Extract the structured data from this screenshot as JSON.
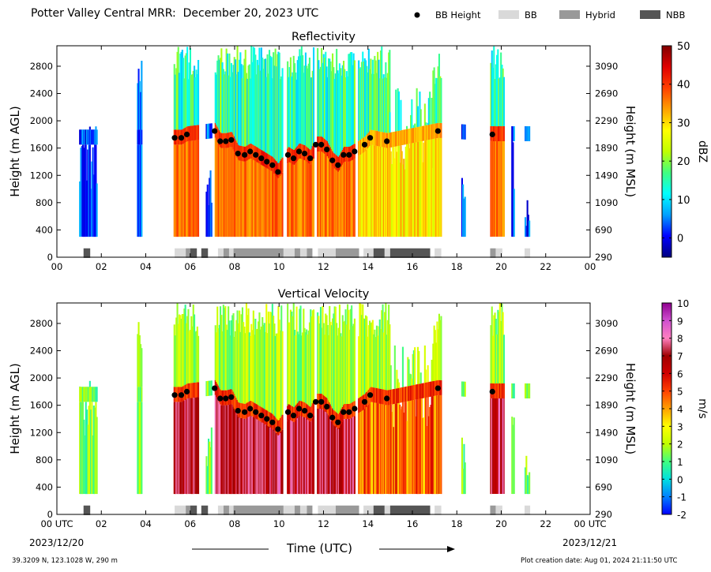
{
  "header": {
    "title": "Potter Valley Central MRR:  December 20, 2023 UTC",
    "legend": [
      {
        "label": "BB Height",
        "marker": "dot",
        "color": "#000000"
      },
      {
        "label": "BB",
        "marker": "box",
        "color": "#d9d9d9"
      },
      {
        "label": "Hybrid",
        "marker": "box",
        "color": "#999999"
      },
      {
        "label": "NBB",
        "marker": "box",
        "color": "#555555"
      }
    ]
  },
  "footer": {
    "location": "39.3209 N, 123.1028 W, 290 m",
    "creation": "Plot creation date: Aug 01, 2024 21:11:50 UTC",
    "xlabel": "Time (UTC)",
    "start_tick": "00 UTC",
    "start_date": "2023/12/20",
    "end_tick": "00 UTC",
    "end_date": "2023/12/21"
  },
  "chart_data": [
    {
      "type": "heatmap",
      "title": "Reflectivity",
      "xlabel": "",
      "ylabel": "Height (m AGL)",
      "ylabel_right": "Height (m MSL)",
      "xlim": [
        0,
        24
      ],
      "ylim": [
        0,
        3100
      ],
      "x_ticks": [
        "00",
        "02",
        "04",
        "06",
        "08",
        "10",
        "12",
        "14",
        "16",
        "18",
        "20",
        "22",
        "00"
      ],
      "y_ticks": [
        0,
        400,
        800,
        1200,
        1600,
        2000,
        2400,
        2800
      ],
      "y_ticks_right": [
        290,
        690,
        1090,
        1490,
        1890,
        2290,
        2690,
        3090
      ],
      "colorbar": {
        "label": "dBZ",
        "min": -5,
        "max": 50,
        "ticks": [
          0,
          10,
          20,
          30,
          40,
          50
        ],
        "colors": [
          "#000080",
          "#0000ff",
          "#00a0ff",
          "#00ffff",
          "#40ff80",
          "#c0ff00",
          "#ffff00",
          "#ffa000",
          "#ff4000",
          "#e00000",
          "#800000"
        ]
      },
      "grid": false
    },
    {
      "type": "heatmap",
      "title": "Vertical Velocity",
      "xlabel": "Time (UTC)",
      "ylabel": "Height (m AGL)",
      "ylabel_right": "Height (m MSL)",
      "xlim": [
        0,
        24
      ],
      "ylim": [
        0,
        3100
      ],
      "x_ticks": [
        "00 UTC",
        "02",
        "04",
        "06",
        "08",
        "10",
        "12",
        "14",
        "16",
        "18",
        "20",
        "22",
        "00 UTC"
      ],
      "y_ticks": [
        0,
        400,
        800,
        1200,
        1600,
        2000,
        2400,
        2800
      ],
      "y_ticks_right": [
        290,
        690,
        1090,
        1490,
        1890,
        2290,
        2690,
        3090
      ],
      "colorbar": {
        "label": "m/s",
        "min": -2,
        "max": 10,
        "ticks": [
          -2,
          -1,
          0,
          1,
          2,
          3,
          4,
          5,
          6,
          7,
          8,
          9,
          10
        ],
        "colors": [
          "#0000ff",
          "#0080ff",
          "#00e0e0",
          "#40ff80",
          "#c0ff00",
          "#ffff00",
          "#ffa000",
          "#ff4000",
          "#d00000",
          "#a00000",
          "#ff80c0",
          "#d050d0",
          "#900090"
        ]
      },
      "grid": false
    }
  ],
  "bb_height": {
    "time": [
      5.3,
      5.6,
      5.85,
      7.1,
      7.35,
      7.6,
      7.85,
      8.15,
      8.45,
      8.7,
      8.95,
      9.2,
      9.45,
      9.7,
      9.95,
      10.4,
      10.65,
      10.9,
      11.15,
      11.4,
      11.65,
      11.9,
      12.15,
      12.4,
      12.65,
      12.9,
      13.15,
      13.4,
      13.85,
      14.1,
      14.85,
      17.15,
      19.6
    ],
    "height": [
      1750,
      1750,
      1800,
      1850,
      1700,
      1700,
      1720,
      1520,
      1500,
      1550,
      1500,
      1450,
      1400,
      1350,
      1250,
      1500,
      1450,
      1550,
      1520,
      1450,
      1650,
      1650,
      1580,
      1420,
      1350,
      1500,
      1500,
      1550,
      1650,
      1750,
      1700,
      1850,
      1800
    ]
  },
  "classification": [
    {
      "start": 1.2,
      "end": 1.5,
      "class": "NBB"
    },
    {
      "start": 5.3,
      "end": 5.8,
      "class": "BB"
    },
    {
      "start": 5.8,
      "end": 6.0,
      "class": "Hybrid"
    },
    {
      "start": 6.0,
      "end": 6.3,
      "class": "NBB"
    },
    {
      "start": 6.5,
      "end": 6.8,
      "class": "NBB"
    },
    {
      "start": 7.25,
      "end": 7.5,
      "class": "BB"
    },
    {
      "start": 7.5,
      "end": 7.75,
      "class": "Hybrid"
    },
    {
      "start": 7.75,
      "end": 7.95,
      "class": "BB"
    },
    {
      "start": 7.95,
      "end": 10.2,
      "class": "Hybrid"
    },
    {
      "start": 10.2,
      "end": 10.7,
      "class": "BB"
    },
    {
      "start": 10.7,
      "end": 10.95,
      "class": "Hybrid"
    },
    {
      "start": 10.95,
      "end": 11.25,
      "class": "BB"
    },
    {
      "start": 11.25,
      "end": 11.5,
      "class": "Hybrid"
    },
    {
      "start": 11.75,
      "end": 12.55,
      "class": "BB"
    },
    {
      "start": 12.55,
      "end": 13.6,
      "class": "Hybrid"
    },
    {
      "start": 13.8,
      "end": 14.25,
      "class": "BB"
    },
    {
      "start": 14.25,
      "end": 14.75,
      "class": "NBB"
    },
    {
      "start": 14.75,
      "end": 15.0,
      "class": "BB"
    },
    {
      "start": 15.0,
      "end": 16.8,
      "class": "NBB"
    },
    {
      "start": 17.0,
      "end": 17.3,
      "class": "BB"
    },
    {
      "start": 19.5,
      "end": 19.75,
      "class": "Hybrid"
    },
    {
      "start": 19.75,
      "end": 20.05,
      "class": "BB"
    },
    {
      "start": 21.05,
      "end": 21.3,
      "class": "BB"
    }
  ]
}
